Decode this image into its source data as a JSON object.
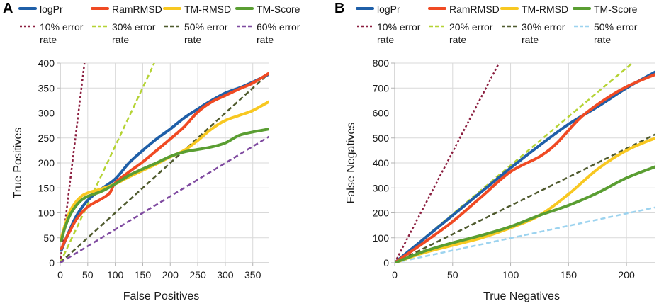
{
  "chart_data": [
    {
      "type": "line",
      "panel_label": "A",
      "xlabel": "False Positives",
      "ylabel": "True Positives",
      "xlim": [
        0,
        380
      ],
      "ylim": [
        0,
        400
      ],
      "x_ticks": [
        0,
        50,
        100,
        150,
        200,
        250,
        300,
        350
      ],
      "y_ticks": [
        0,
        50,
        100,
        150,
        200,
        250,
        300,
        350,
        400
      ],
      "grid": true,
      "legend_placement": "top",
      "legend_row2_label": "rate",
      "series": [
        {
          "name": "logPr",
          "color": "#1f5fa8",
          "style": "solid",
          "points": [
            [
              2,
              25
            ],
            [
              15,
              60
            ],
            [
              30,
              95
            ],
            [
              50,
              125
            ],
            [
              75,
              148
            ],
            [
              100,
              168
            ],
            [
              125,
              200
            ],
            [
              150,
              225
            ],
            [
              175,
              248
            ],
            [
              200,
              268
            ],
            [
              225,
              290
            ],
            [
              250,
              308
            ],
            [
              275,
              325
            ],
            [
              300,
              340
            ],
            [
              325,
              350
            ],
            [
              350,
              362
            ],
            [
              380,
              378
            ]
          ]
        },
        {
          "name": "RamRMSD",
          "color": "#f04a23",
          "style": "solid",
          "points": [
            [
              2,
              28
            ],
            [
              15,
              58
            ],
            [
              30,
              88
            ],
            [
              50,
              112
            ],
            [
              75,
              128
            ],
            [
              90,
              140
            ],
            [
              100,
              160
            ],
            [
              125,
              182
            ],
            [
              150,
              202
            ],
            [
              175,
              225
            ],
            [
              200,
              248
            ],
            [
              225,
              272
            ],
            [
              250,
              302
            ],
            [
              275,
              322
            ],
            [
              300,
              335
            ],
            [
              325,
              348
            ],
            [
              350,
              360
            ],
            [
              380,
              380
            ]
          ]
        },
        {
          "name": "TM-RMSD",
          "color": "#f8c821",
          "style": "solid",
          "points": [
            [
              2,
              50
            ],
            [
              10,
              80
            ],
            [
              20,
              108
            ],
            [
              35,
              130
            ],
            [
              50,
              140
            ],
            [
              75,
              148
            ],
            [
              100,
              158
            ],
            [
              125,
              172
            ],
            [
              150,
              185
            ],
            [
              175,
              198
            ],
            [
              200,
              212
            ],
            [
              225,
              225
            ],
            [
              250,
              245
            ],
            [
              275,
              268
            ],
            [
              300,
              285
            ],
            [
              325,
              295
            ],
            [
              350,
              305
            ],
            [
              380,
              323
            ]
          ]
        },
        {
          "name": "TM-Score",
          "color": "#5a9e32",
          "style": "solid",
          "points": [
            [
              2,
              45
            ],
            [
              10,
              75
            ],
            [
              20,
              100
            ],
            [
              35,
              122
            ],
            [
              50,
              133
            ],
            [
              75,
              143
            ],
            [
              100,
              158
            ],
            [
              125,
              175
            ],
            [
              150,
              188
            ],
            [
              175,
              200
            ],
            [
              200,
              213
            ],
            [
              225,
              222
            ],
            [
              250,
              227
            ],
            [
              275,
              232
            ],
            [
              300,
              240
            ],
            [
              325,
              255
            ],
            [
              350,
              262
            ],
            [
              380,
              268
            ]
          ]
        },
        {
          "name": "10% error",
          "color": "#8b1e3f",
          "style": "dashed",
          "points": [
            [
              0,
              0
            ],
            [
              44,
              400
            ]
          ]
        },
        {
          "name": "30% error",
          "color": "#b5d334",
          "style": "dashed",
          "points": [
            [
              0,
              0
            ],
            [
              171,
              400
            ]
          ]
        },
        {
          "name": "50% error",
          "color": "#4f5a2e",
          "style": "dashed",
          "points": [
            [
              0,
              0
            ],
            [
              380,
              380
            ]
          ]
        },
        {
          "name": "60% error",
          "color": "#7f4aa0",
          "style": "dashed",
          "points": [
            [
              0,
              0
            ],
            [
              380,
              253
            ]
          ]
        }
      ]
    },
    {
      "type": "line",
      "panel_label": "B",
      "xlabel": "True Negatives",
      "ylabel": "False Negatives",
      "xlim": [
        0,
        225
      ],
      "ylim": [
        0,
        800
      ],
      "x_ticks": [
        0,
        50,
        100,
        150,
        200
      ],
      "y_ticks": [
        0,
        100,
        200,
        300,
        400,
        500,
        600,
        700,
        800
      ],
      "grid": true,
      "legend_placement": "top",
      "legend_row2_label": "rate",
      "series": [
        {
          "name": "logPr",
          "color": "#1f5fa8",
          "style": "solid",
          "points": [
            [
              0,
              0
            ],
            [
              25,
              95
            ],
            [
              50,
              190
            ],
            [
              75,
              285
            ],
            [
              100,
              380
            ],
            [
              125,
              470
            ],
            [
              150,
              555
            ],
            [
              175,
              625
            ],
            [
              200,
              700
            ],
            [
              225,
              765
            ]
          ]
        },
        {
          "name": "RamRMSD",
          "color": "#f04a23",
          "style": "solid",
          "points": [
            [
              0,
              0
            ],
            [
              25,
              80
            ],
            [
              50,
              165
            ],
            [
              75,
              265
            ],
            [
              100,
              365
            ],
            [
              125,
              425
            ],
            [
              140,
              480
            ],
            [
              160,
              580
            ],
            [
              180,
              650
            ],
            [
              200,
              705
            ],
            [
              225,
              755
            ]
          ]
        },
        {
          "name": "TM-RMSD",
          "color": "#f8c821",
          "style": "solid",
          "points": [
            [
              0,
              0
            ],
            [
              25,
              40
            ],
            [
              50,
              70
            ],
            [
              75,
              100
            ],
            [
              100,
              140
            ],
            [
              125,
              190
            ],
            [
              150,
              275
            ],
            [
              175,
              375
            ],
            [
              200,
              450
            ],
            [
              225,
              500
            ]
          ]
        },
        {
          "name": "TM-Score",
          "color": "#5a9e32",
          "style": "solid",
          "points": [
            [
              0,
              0
            ],
            [
              25,
              45
            ],
            [
              50,
              80
            ],
            [
              75,
              110
            ],
            [
              100,
              145
            ],
            [
              125,
              190
            ],
            [
              150,
              230
            ],
            [
              175,
              280
            ],
            [
              200,
              340
            ],
            [
              225,
              385
            ]
          ]
        },
        {
          "name": "10% error",
          "color": "#8b1e3f",
          "style": "dashed",
          "points": [
            [
              0,
              0
            ],
            [
              90,
              800
            ]
          ]
        },
        {
          "name": "20% error",
          "color": "#b5d334",
          "style": "dashed",
          "points": [
            [
              0,
              0
            ],
            [
              205,
              800
            ]
          ]
        },
        {
          "name": "30% error",
          "color": "#4f5a2e",
          "style": "dashed",
          "points": [
            [
              0,
              0
            ],
            [
              225,
              515
            ]
          ]
        },
        {
          "name": "50% error",
          "color": "#9cd3ef",
          "style": "dashed",
          "points": [
            [
              0,
              0
            ],
            [
              225,
              222
            ]
          ]
        }
      ]
    }
  ]
}
